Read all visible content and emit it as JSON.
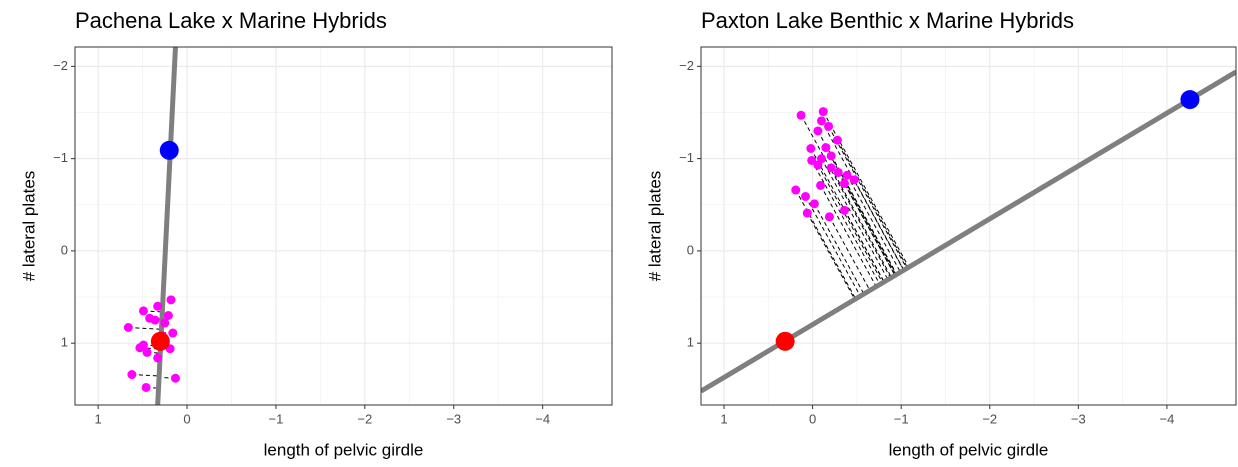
{
  "chart_data": [
    {
      "type": "scatter",
      "title": "Pachena Lake x Marine Hybrids",
      "xlabel": "length of pelvic girdle",
      "ylabel": "# lateral plates",
      "xlim": [
        1.26,
        -4.78
      ],
      "ylim": [
        1.67,
        -2.21
      ],
      "xticks": [
        1,
        0,
        {
          "value": -1,
          "label": "−1"
        },
        {
          "value": -2,
          "label": "−2"
        },
        {
          "value": -3,
          "label": "−3"
        },
        {
          "value": -4,
          "label": "−4"
        }
      ],
      "yticks": [
        {
          "value": -2,
          "label": "−2"
        },
        {
          "value": -1,
          "label": "−1"
        },
        0,
        1
      ],
      "grid": true,
      "line": {
        "x": [
          0.13,
          0.33
        ],
        "y": [
          -2.21,
          1.67
        ],
        "color": "#7f7f7f"
      },
      "hybrids": {
        "color": "#ff00ff",
        "x": [
          0.66,
          0.49,
          0.33,
          0.18,
          0.42,
          0.25,
          0.16,
          0.49,
          0.45,
          0.33,
          0.19,
          0.62,
          0.46,
          0.13,
          0.36,
          0.28,
          0.53,
          0.21
        ],
        "y": [
          0.83,
          0.65,
          0.6,
          0.53,
          0.73,
          0.78,
          0.89,
          1.02,
          1.1,
          1.16,
          1.06,
          1.34,
          1.48,
          1.38,
          0.75,
          0.92,
          1.05,
          0.7
        ]
      },
      "parents": [
        {
          "x": 0.3,
          "y": 0.98,
          "color": "#ff0000"
        },
        {
          "x": 0.2,
          "y": -1.09,
          "color": "#0000ff"
        }
      ]
    },
    {
      "type": "scatter",
      "title": "Paxton Lake Benthic x Marine Hybrids",
      "xlabel": "length of pelvic girdle",
      "ylabel": "# lateral plates",
      "xlim": [
        1.26,
        -4.78
      ],
      "ylim": [
        1.67,
        -2.21
      ],
      "xticks": [
        1,
        0,
        {
          "value": -1,
          "label": "−1"
        },
        {
          "value": -2,
          "label": "−2"
        },
        {
          "value": -3,
          "label": "−3"
        },
        {
          "value": -4,
          "label": "−4"
        }
      ],
      "yticks": [
        {
          "value": -2,
          "label": "−2"
        },
        {
          "value": -1,
          "label": "−1"
        },
        0,
        1
      ],
      "grid": true,
      "line": {
        "x": [
          1.26,
          -4.78
        ],
        "y": [
          1.52,
          -1.94
        ],
        "color": "#7f7f7f"
      },
      "hybrids": {
        "color": "#ff00ff",
        "x": [
          0.13,
          -0.12,
          -0.1,
          -0.18,
          -0.06,
          0.02,
          -0.15,
          -0.28,
          0.01,
          -0.1,
          -0.21,
          -0.06,
          -0.29,
          -0.39,
          -0.47,
          -0.36,
          -0.21,
          0.19,
          0.08,
          -0.02,
          0.06,
          -0.19,
          -0.36,
          -0.09
        ],
        "y": [
          -1.47,
          -1.51,
          -1.41,
          -1.35,
          -1.3,
          -1.11,
          -1.12,
          -1.2,
          -0.98,
          -1.0,
          -1.03,
          -0.93,
          -0.85,
          -0.82,
          -0.77,
          -0.73,
          -0.9,
          -0.66,
          -0.59,
          -0.51,
          -0.41,
          -0.37,
          -0.44,
          -0.71
        ]
      },
      "parents": [
        {
          "x": 0.31,
          "y": 0.98,
          "color": "#ff0000"
        },
        {
          "x": -4.26,
          "y": -1.64,
          "color": "#0000ff"
        }
      ]
    }
  ]
}
